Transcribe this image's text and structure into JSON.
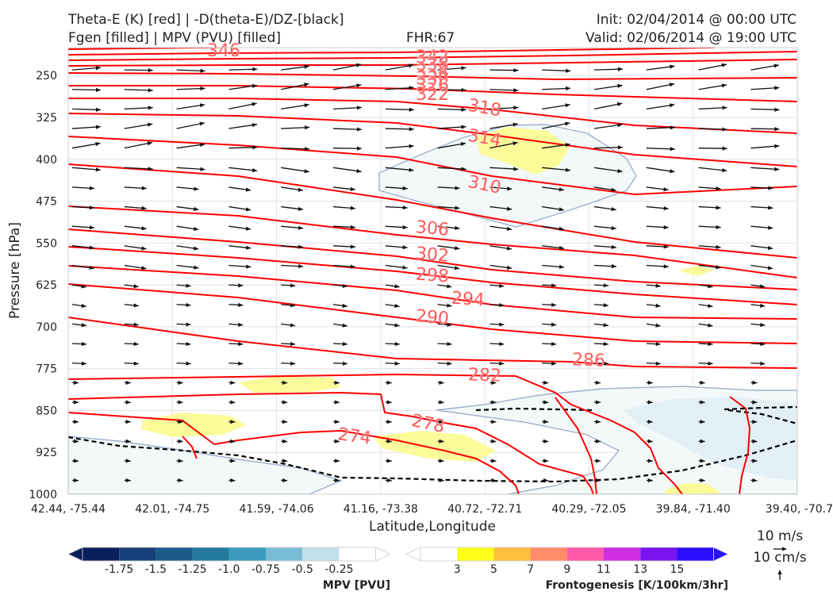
{
  "header": {
    "title_left_1": "Theta-E (K) [red] | -D(theta-E)/DZ-[black]",
    "title_left_2": "Fgen [filled] | MPV (PVU) [filled]",
    "fhr": "FHR:67",
    "init": "Init: 02/04/2014 @ 00:00 UTC",
    "valid": "Valid: 02/06/2014 @ 19:00 UTC"
  },
  "chart_data": {
    "type": "cross-section",
    "xlabel": "Latitude,Longitude",
    "ylabel": "Pressure [hPa]",
    "y_scale": "linear, inverted",
    "ylim": [
      1000,
      200
    ],
    "x_ticks": [
      "42.44, -75.44",
      "42.01, -74.75",
      "41.59, -74.06",
      "41.16, -73.38",
      "40.72, -72.71",
      "40.29, -72.05",
      "39.84, -71.40",
      "39.40, -70.7"
    ],
    "y_ticks": [
      250,
      325,
      400,
      475,
      550,
      625,
      700,
      775,
      850,
      925,
      1000
    ],
    "grid": true,
    "theta_e_contours": {
      "color": "#ff0000",
      "label_color": "#ff5a5a",
      "labels": [
        "346",
        "342",
        "338",
        "334",
        "330",
        "326",
        "322",
        "318",
        "314",
        "310",
        "306",
        "302",
        "298",
        "294",
        "290",
        "286",
        "282",
        "278",
        "274"
      ]
    },
    "vector_legend": {
      "wind": "10 m/s",
      "vertical": "10 cm/s"
    },
    "mpv_colorbar": {
      "label": "MPV [PVU]",
      "tick_labels": [
        "-1.75",
        "-1.5",
        "-1.25",
        "-1.0",
        "-0.75",
        "-0.5",
        "-0.25"
      ],
      "colors": [
        "#0a1f5e",
        "#153f78",
        "#1c5a8c",
        "#237a9d",
        "#3b9bbd",
        "#79bcd5",
        "#bfdfea",
        "#ffffff"
      ]
    },
    "fgen_colorbar": {
      "label": "Frontogenesis [K/100km/3hr]",
      "tick_labels": [
        "3",
        "5",
        "7",
        "9",
        "11",
        "13",
        "15"
      ],
      "colors": [
        "#ffffff",
        "#ffff1a",
        "#ffc040",
        "#ff8c6a",
        "#ff5aa8",
        "#cc2ee0",
        "#7a14f0",
        "#2a10ff"
      ]
    }
  }
}
